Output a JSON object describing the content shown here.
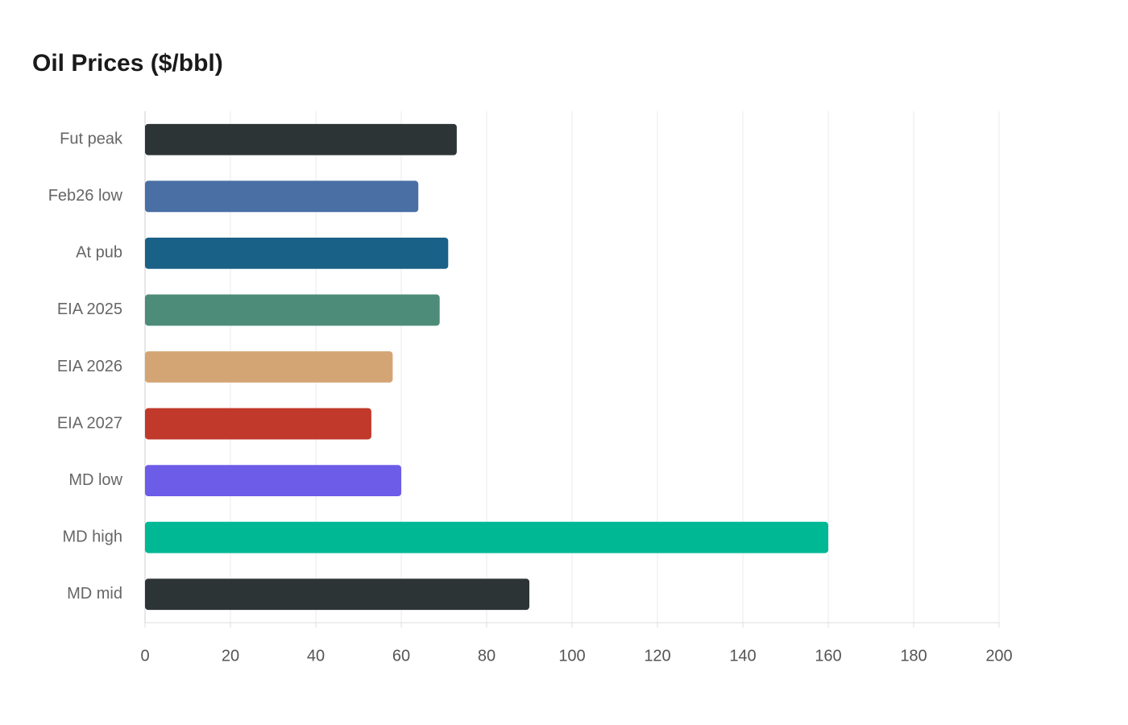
{
  "chart_data": {
    "type": "hbar",
    "title": "Oil Prices ($/bbl)",
    "categories": [
      "Fut peak",
      "Feb26 low",
      "At pub",
      "EIA 2025",
      "EIA 2026",
      "EIA 2027",
      "MD low",
      "MD high",
      "MD mid"
    ],
    "values": [
      73,
      64,
      71,
      69,
      58,
      53,
      60,
      160,
      90
    ],
    "colors": [
      "#2d3436",
      "#4a6fa5",
      "#1a6188",
      "#4e8c7a",
      "#d4a574",
      "#c0392b",
      "#6c5ce7",
      "#00b894",
      "#2d3436"
    ],
    "xlim": [
      0,
      200
    ],
    "xticks": [
      0,
      20,
      40,
      60,
      80,
      100,
      120,
      140,
      160,
      180,
      200
    ],
    "grid": true
  }
}
